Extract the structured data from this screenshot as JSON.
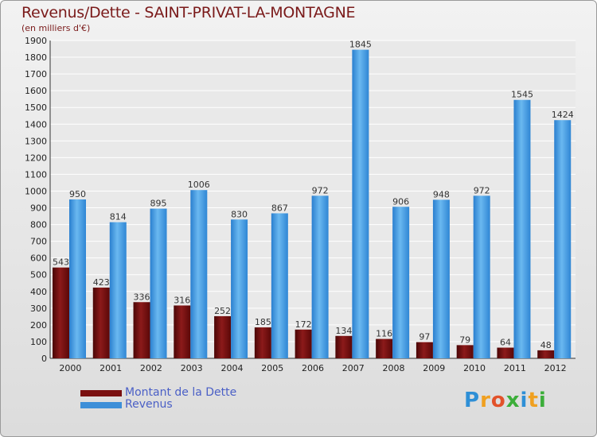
{
  "chart_data": {
    "type": "bar",
    "title": "Revenus/Dette - SAINT-PRIVAT-LA-MONTAGNE",
    "subtitle": "(en milliers d'€)",
    "categories": [
      "2000",
      "2001",
      "2002",
      "2003",
      "2004",
      "2005",
      "2006",
      "2007",
      "2008",
      "2009",
      "2010",
      "2011",
      "2012"
    ],
    "series": [
      {
        "name": "Montant de la Dette",
        "color": "#7a1010",
        "values": [
          543,
          423,
          336,
          316,
          252,
          185,
          172,
          134,
          116,
          97,
          79,
          64,
          48
        ]
      },
      {
        "name": "Revenus",
        "color": "#3d8fd8",
        "values": [
          950,
          814,
          895,
          1006,
          830,
          867,
          972,
          1845,
          906,
          948,
          972,
          1545,
          1424
        ]
      }
    ],
    "ylim": [
      0,
      1900
    ],
    "yticks": [
      0,
      100,
      200,
      300,
      400,
      500,
      600,
      700,
      800,
      900,
      1000,
      1100,
      1200,
      1300,
      1400,
      1500,
      1600,
      1700,
      1800,
      1900
    ],
    "grid": true,
    "legend_position": "bottom-left"
  },
  "brand": {
    "letters": [
      "P",
      "r",
      "o",
      "x",
      "i",
      "t",
      "i"
    ],
    "colors": [
      "#2e8fd6",
      "#f0a020",
      "#e2522a",
      "#3cae3a",
      "#2e8fd6",
      "#f0a020",
      "#3cae3a"
    ]
  }
}
